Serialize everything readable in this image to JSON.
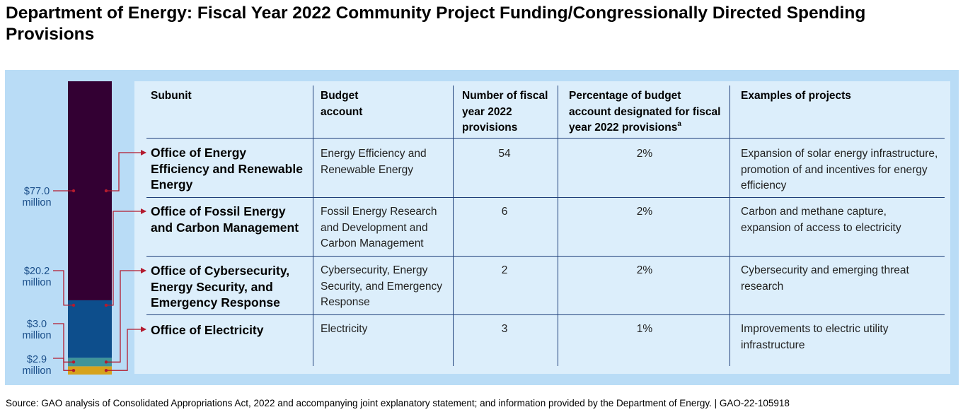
{
  "title": "Department of Energy: Fiscal Year 2022 Community Project Funding/Congressionally Directed Spending Provisions",
  "colors": {
    "panel": "#b9dcf6",
    "table_bg": "#dceefb",
    "accent_line": "#b31b2f",
    "rule": "#1f3f7a"
  },
  "table": {
    "headers": {
      "subunit": "Subunit",
      "budget_account": "Budget account",
      "number": "Number of fiscal year 2022 provisions",
      "percentage": "Percentage of budget account designated for fiscal year 2022 provisions",
      "percentage_note": "a",
      "examples": "Examples of projects"
    },
    "rows": [
      {
        "subunit": "Office of Energy Efficiency and Renewable Energy",
        "budget_account": "Energy Efficiency and Renewable Energy",
        "number": "54",
        "percentage": "2%",
        "examples": "Expansion of solar energy infrastructure, promotion of and incentives for energy efficiency"
      },
      {
        "subunit": "Office of Fossil Energy and Carbon Management",
        "budget_account": "Fossil Energy Research and Development and Carbon Management",
        "number": "6",
        "percentage": "2%",
        "examples": "Carbon and methane capture, expansion of access to electricity"
      },
      {
        "subunit": "Office of Cybersecurity, Energy Security, and Emergency Response",
        "budget_account": "Cybersecurity, Energy Security, and Emergency Response",
        "number": "2",
        "percentage": "2%",
        "examples": "Cybersecurity and emerging threat research"
      },
      {
        "subunit": "Office of Electricity",
        "budget_account": "Electricity",
        "number": "3",
        "percentage": "1%",
        "examples": "Improvements to electric utility infrastructure"
      }
    ]
  },
  "chart_data": {
    "type": "bar",
    "stacked": true,
    "categories": [
      "Office of Energy Efficiency and Renewable Energy",
      "Office of Fossil Energy and Carbon Management",
      "Office of Cybersecurity, Energy Security, and Emergency Response",
      "Office of Electricity"
    ],
    "values": [
      77.0,
      20.2,
      3.0,
      2.9
    ],
    "unit": "million",
    "labels": [
      {
        "amount": "$77.0",
        "unit": "million"
      },
      {
        "amount": "$20.2",
        "unit": "million"
      },
      {
        "amount": "$3.0",
        "unit": "million"
      },
      {
        "amount": "$2.9",
        "unit": "million"
      }
    ],
    "segment_colors": [
      "#330033",
      "#0d4e8c",
      "#3f9499",
      "#d6a21c"
    ],
    "stack_order": "largest on top"
  },
  "source": "Source: GAO analysis of Consolidated Appropriations Act, 2022 and accompanying joint explanatory statement; and information provided by the Department of Energy.  |  GAO-22-105918"
}
